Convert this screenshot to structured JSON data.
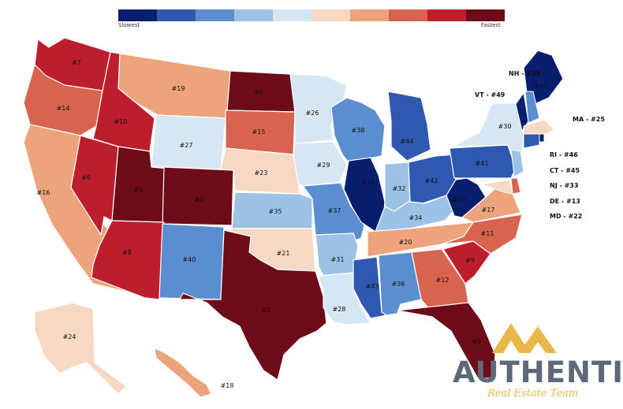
{
  "legend": {
    "low_label": "Slowest",
    "high_label": "Fastest",
    "colors": [
      "#0a1e6e",
      "#2f58b0",
      "#5b8ed1",
      "#9cc3e5",
      "#d6e6f2",
      "#f7d8c3",
      "#eda37c",
      "#d8644f",
      "#bd1e2e",
      "#6d0b18"
    ]
  },
  "states": [
    {
      "id": "WA",
      "label": "#7",
      "color": "#bd1e2e"
    },
    {
      "id": "OR",
      "label": "#14",
      "color": "#d8644f"
    },
    {
      "id": "CA",
      "label": "#16",
      "color": "#eda37c"
    },
    {
      "id": "ID",
      "label": "#10",
      "color": "#bd1e2e"
    },
    {
      "id": "NV",
      "label": "#6",
      "color": "#bd1e2e"
    },
    {
      "id": "MT",
      "label": "#19",
      "color": "#eda37c"
    },
    {
      "id": "WY",
      "label": "#27",
      "color": "#d6e6f2"
    },
    {
      "id": "UT",
      "label": "#3",
      "color": "#6d0b18"
    },
    {
      "id": "CO",
      "label": "#4",
      "color": "#6d0b18"
    },
    {
      "id": "AZ",
      "label": "#8",
      "color": "#bd1e2e"
    },
    {
      "id": "NM",
      "label": "#40",
      "color": "#5b8ed1"
    },
    {
      "id": "ND",
      "label": "#1",
      "color": "#6d0b18"
    },
    {
      "id": "SD",
      "label": "#15",
      "color": "#d8644f"
    },
    {
      "id": "NE",
      "label": "#23",
      "color": "#f7d8c3"
    },
    {
      "id": "KS",
      "label": "#35",
      "color": "#9cc3e5"
    },
    {
      "id": "OK",
      "label": "#21",
      "color": "#f7d8c3"
    },
    {
      "id": "TX",
      "label": "#2",
      "color": "#6d0b18"
    },
    {
      "id": "MN",
      "label": "#26",
      "color": "#d6e6f2"
    },
    {
      "id": "IA",
      "label": "#29",
      "color": "#d6e6f2"
    },
    {
      "id": "MO",
      "label": "#37",
      "color": "#5b8ed1"
    },
    {
      "id": "AR",
      "label": "#31",
      "color": "#9cc3e5"
    },
    {
      "id": "LA",
      "label": "#28",
      "color": "#d6e6f2"
    },
    {
      "id": "WI",
      "label": "#38",
      "color": "#5b8ed1"
    },
    {
      "id": "IL",
      "label": "#48",
      "color": "#0a1e6e"
    },
    {
      "id": "MI",
      "label": "#44",
      "color": "#2f58b0"
    },
    {
      "id": "IN",
      "label": "#32",
      "color": "#9cc3e5"
    },
    {
      "id": "OH",
      "label": "#42",
      "color": "#2f58b0"
    },
    {
      "id": "KY",
      "label": "#34",
      "color": "#9cc3e5"
    },
    {
      "id": "TN",
      "label": "#20",
      "color": "#eda37c"
    },
    {
      "id": "MS",
      "label": "#43",
      "color": "#2f58b0"
    },
    {
      "id": "AL",
      "label": "#36",
      "color": "#5b8ed1"
    },
    {
      "id": "GA",
      "label": "#12",
      "color": "#d8644f"
    },
    {
      "id": "FL",
      "label": "#5",
      "color": "#6d0b18"
    },
    {
      "id": "SC",
      "label": "#9",
      "color": "#bd1e2e"
    },
    {
      "id": "NC",
      "label": "#11",
      "color": "#d8644f"
    },
    {
      "id": "VA",
      "label": "#17",
      "color": "#eda37c"
    },
    {
      "id": "WV",
      "label": "#50",
      "color": "#0a1e6e"
    },
    {
      "id": "PA",
      "label": "#41",
      "color": "#2f58b0"
    },
    {
      "id": "NY",
      "label": "#30",
      "color": "#d6e6f2"
    },
    {
      "id": "ME",
      "label": "#47",
      "color": "#0a1e6e"
    },
    {
      "id": "AK",
      "label": "#24",
      "color": "#f7d8c3"
    },
    {
      "id": "HI",
      "label": "#18",
      "color": "#eda37c"
    }
  ],
  "small_states": [
    {
      "id": "VT",
      "label": "VT - #49",
      "color": "#0a1e6e"
    },
    {
      "id": "NH",
      "label": "NH - #39",
      "color": "#5b8ed1"
    },
    {
      "id": "MA",
      "label": "MA - #25",
      "color": "#f7d8c3"
    },
    {
      "id": "RI",
      "label": "RI - #46",
      "color": "#0a1e6e"
    },
    {
      "id": "CT",
      "label": "CT - #45",
      "color": "#2f58b0"
    },
    {
      "id": "NJ",
      "label": "NJ - #33",
      "color": "#9cc3e5"
    },
    {
      "id": "DE",
      "label": "DE - #13",
      "color": "#d8644f"
    },
    {
      "id": "MD",
      "label": "MD - #22",
      "color": "#f7d8c3"
    }
  ],
  "logo": {
    "name": "AUTHENTIC",
    "tagline": "Real Estate Team",
    "gold": "#e9b84a",
    "slate": "#5d6878"
  }
}
